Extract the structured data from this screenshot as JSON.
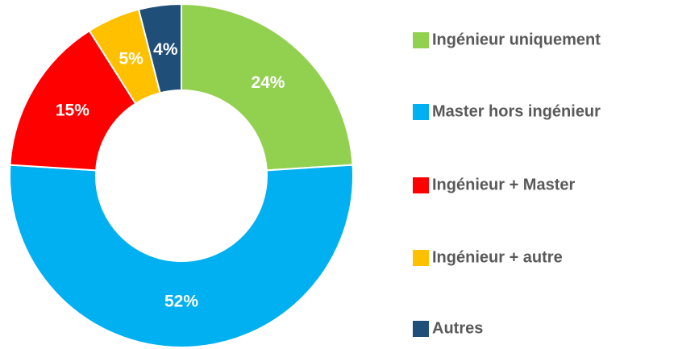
{
  "chart_data": {
    "type": "donut",
    "categories": [
      "Ingénieur uniquement",
      "Master hors ingénieur",
      "Ingénieur + Master",
      "Ingénieur + autre",
      "Autres"
    ],
    "values": [
      24,
      52,
      15,
      5,
      4
    ],
    "value_labels": [
      "24%",
      "52%",
      "15%",
      "5%",
      "4%"
    ],
    "colors": [
      "#92d050",
      "#00b0f0",
      "#ff0000",
      "#ffc000",
      "#1f4e79"
    ],
    "legend": "right"
  }
}
